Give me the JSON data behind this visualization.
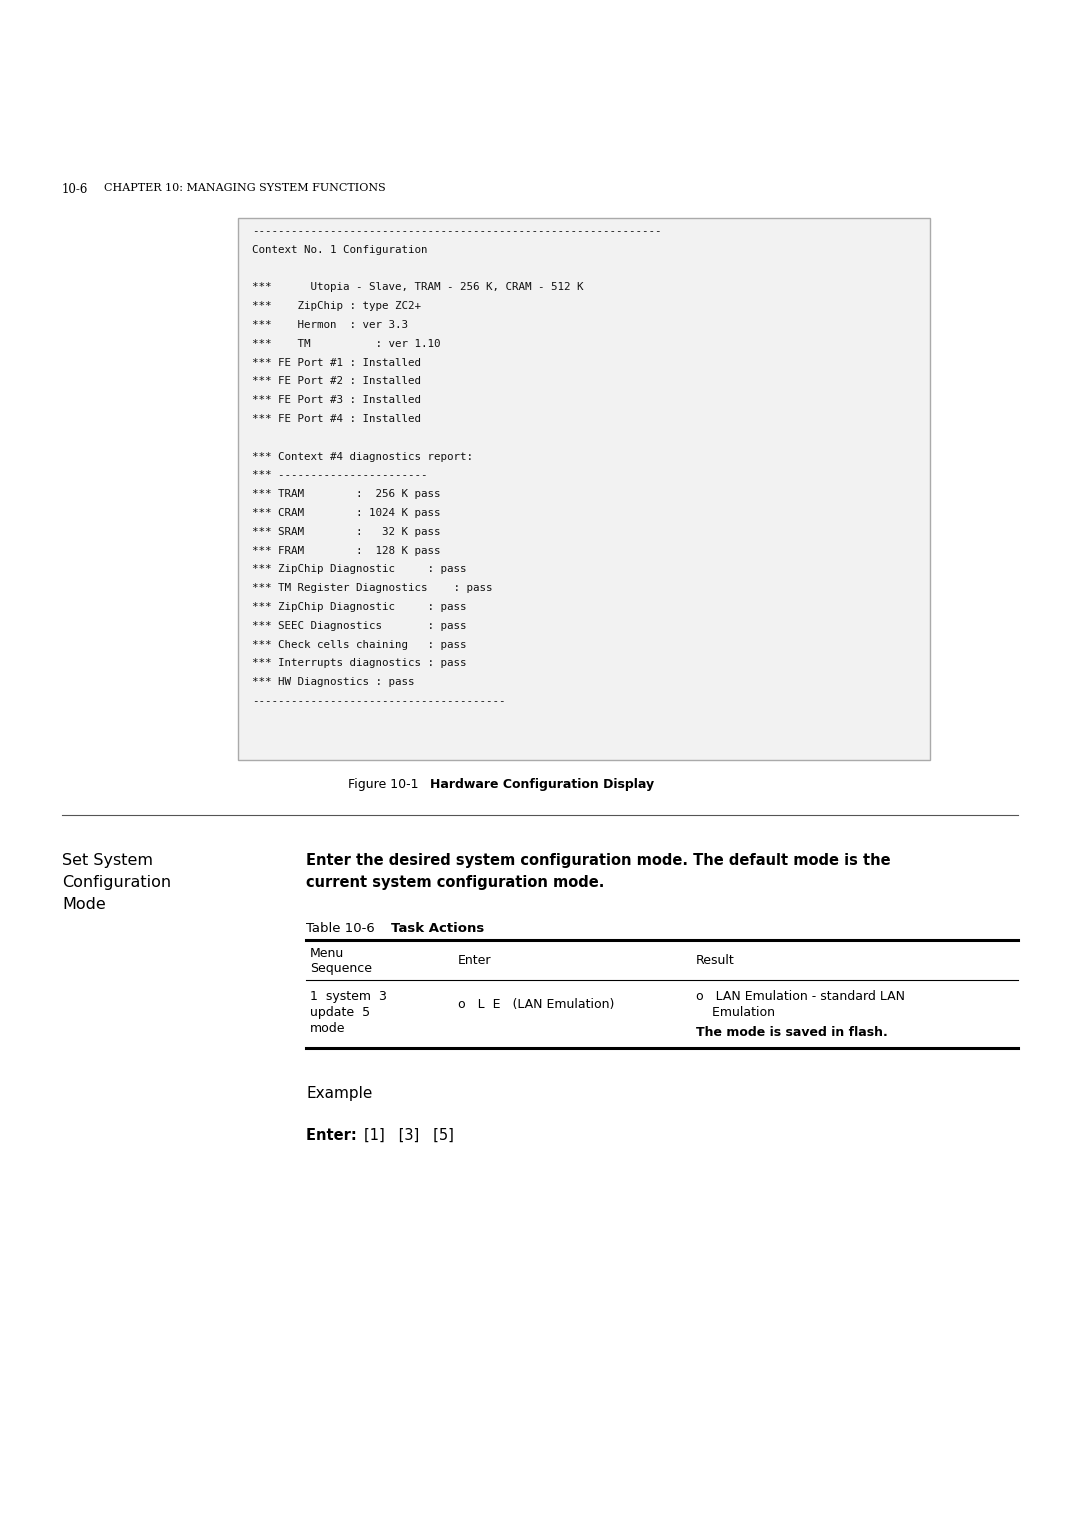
{
  "bg_color": "#ffffff",
  "code_box_lines": [
    "---------------------------------------------------------------",
    "Context No. 1 Configuration",
    "",
    "***      Utopia - Slave, TRAM - 256 K, CRAM - 512 K",
    "***    ZipChip : type ZC2+",
    "***    Hermon  : ver 3.3",
    "***    TM          : ver 1.10",
    "*** FE Port #1 : Installed",
    "*** FE Port #2 : Installed",
    "*** FE Port #3 : Installed",
    "*** FE Port #4 : Installed",
    "",
    "*** Context #4 diagnostics report:",
    "*** -----------------------",
    "*** TRAM        :  256 K pass",
    "*** CRAM        : 1024 K pass",
    "*** SRAM        :   32 K pass",
    "*** FRAM        :  128 K pass",
    "*** ZipChip Diagnostic     : pass",
    "*** TM Register Diagnostics    : pass",
    "*** ZipChip Diagnostic     : pass",
    "*** SEEC Diagnostics       : pass",
    "*** Check cells chaining   : pass",
    "*** Interrupts diagnostics : pass",
    "*** HW Diagnostics : pass",
    "---------------------------------------"
  ],
  "header_num": "10-6",
  "header_rest": "    CHAPTER 10: MANAGING SYSTEM FUNCTIONS",
  "fig_caption_plain": "Figure 10-1   ",
  "fig_caption_bold": "Hardware Configuration Display",
  "sec_title_lines": [
    "Set System",
    "Configuration",
    "Mode"
  ],
  "desc_line1": "Enter the desired system configuration mode. The default mode is the",
  "desc_line2": "current system configuration mode.",
  "tbl_label_plain": "Table 10-6   ",
  "tbl_label_bold": "Task Actions",
  "tbl_hdr_col1a": "Menu",
  "tbl_hdr_col1b": "Sequence",
  "tbl_hdr_col2": "Enter",
  "tbl_hdr_col3": "Result",
  "row_col1_lines": [
    "1  system  3",
    "update  5",
    "mode"
  ],
  "row_col2": "o   L  E   (LAN Emulation)",
  "row_col3_line1": "o   LAN Emulation - standard LAN",
  "row_col3_line2": "    Emulation",
  "row_col3_line3": "The mode is saved in flash.",
  "example_label": "Example",
  "enter_bold": "Enter: ",
  "enter_normal": "[1]   [3]   [5]",
  "code_box_bg": "#f2f2f2",
  "code_box_border": "#aaaaaa",
  "text_color": "#000000",
  "rule_color": "#555555",
  "table_heavy_color": "#000000",
  "table_thin_color": "#000000"
}
